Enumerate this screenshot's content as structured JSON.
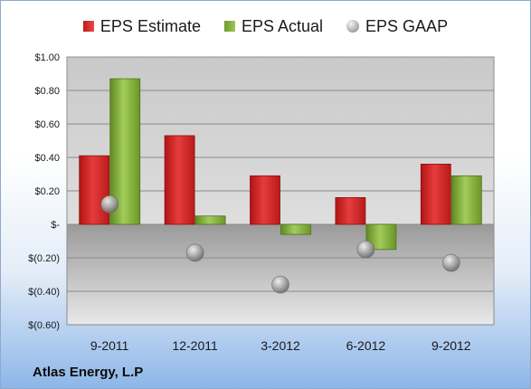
{
  "chart_data": {
    "type": "bar",
    "categories": [
      "9-2011",
      "12-2011",
      "3-2012",
      "6-2012",
      "9-2012"
    ],
    "series": [
      {
        "name": "EPS Estimate",
        "kind": "bar",
        "color": "#d42828",
        "values": [
          0.41,
          0.53,
          0.29,
          0.16,
          0.36
        ]
      },
      {
        "name": "EPS Actual",
        "kind": "bar",
        "color": "#8cb840",
        "values": [
          0.87,
          0.05,
          -0.06,
          -0.15,
          0.29
        ]
      },
      {
        "name": "EPS GAAP",
        "kind": "marker",
        "color": "#a8a8a8",
        "values": [
          0.12,
          -0.17,
          -0.36,
          -0.15,
          -0.23
        ]
      }
    ],
    "ylim": [
      -0.6,
      1.0
    ],
    "yticks": [
      1.0,
      0.8,
      0.6,
      0.4,
      0.2,
      0,
      -0.2,
      -0.4,
      -0.6
    ],
    "ytick_labels": [
      "$1.00",
      "$0.80",
      "$0.60",
      "$0.40",
      "$0.20",
      "$-",
      "$(0.20)",
      "$(0.40)",
      "$(0.60)"
    ],
    "grid": true,
    "legend_position": "top"
  },
  "footer": {
    "company": "Atlas Energy, L.P"
  }
}
